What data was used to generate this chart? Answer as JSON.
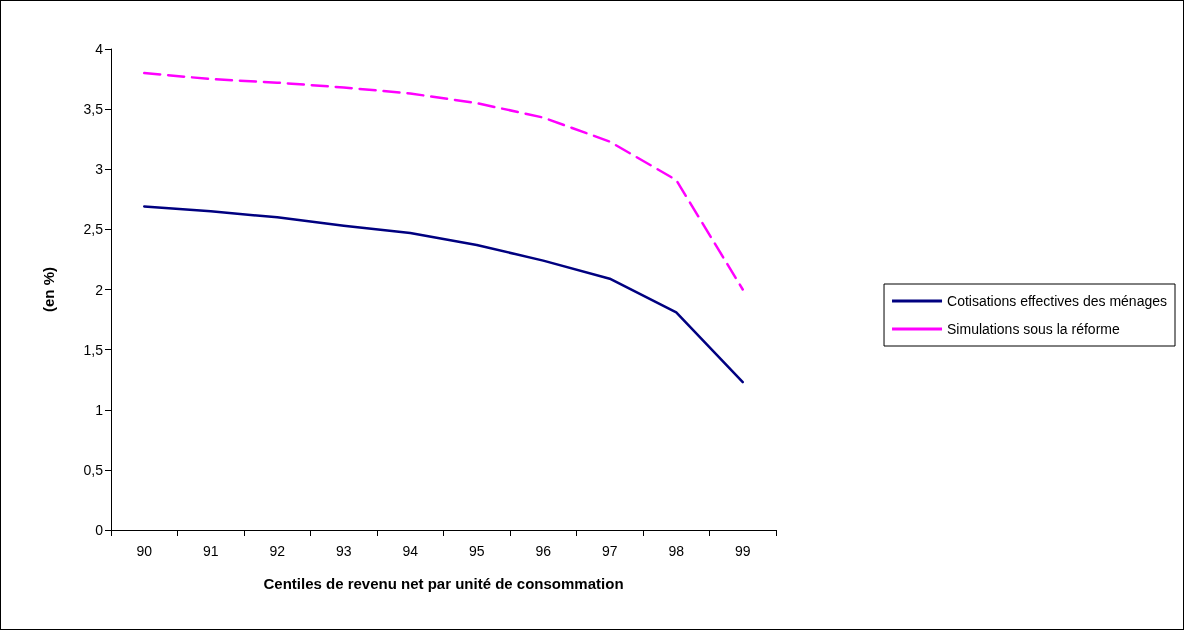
{
  "chart_data": {
    "type": "line",
    "xlabel": "Centiles de revenu net par unité de consommation",
    "ylabel": "(en %)",
    "categories": [
      "90",
      "91",
      "92",
      "93",
      "94",
      "95",
      "96",
      "97",
      "98",
      "99"
    ],
    "series": [
      {
        "name": "Cotisations effectives des ménages",
        "color": "#000080",
        "line_style": "solid",
        "values": [
          2.69,
          2.65,
          2.6,
          2.53,
          2.47,
          2.37,
          2.24,
          2.09,
          1.81,
          1.23
        ]
      },
      {
        "name": "Simulations sous la réforme",
        "color": "#ff00ff",
        "line_style": "dashed",
        "values": [
          3.8,
          3.75,
          3.72,
          3.68,
          3.63,
          3.55,
          3.43,
          3.23,
          2.91,
          2.0
        ]
      }
    ],
    "ylim": [
      0,
      4
    ],
    "yticks": [
      0,
      {
        "value": 0.5,
        "label": "0,5"
      },
      1,
      {
        "value": 1.5,
        "label": "1,5"
      },
      2,
      {
        "value": 2.5,
        "label": "2,5"
      },
      3,
      {
        "value": 3.5,
        "label": "3,5"
      },
      4
    ],
    "grid": false,
    "legend": "right",
    "marker": "none"
  }
}
